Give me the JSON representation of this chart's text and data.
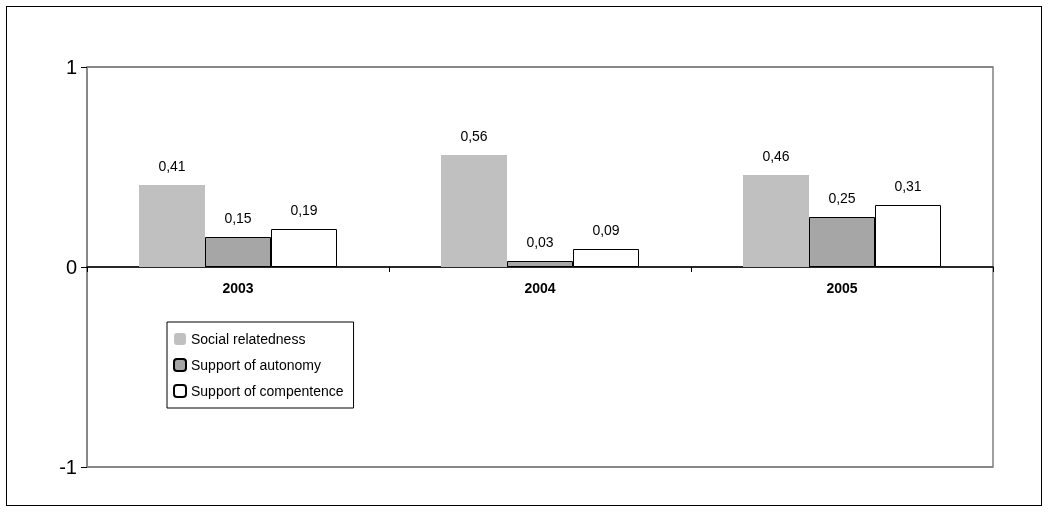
{
  "chart_data": {
    "type": "bar",
    "categories": [
      "2003",
      "2004",
      "2005"
    ],
    "series": [
      {
        "name": "Social relatedness",
        "color": "#c0c0c0",
        "values": [
          0.41,
          0.56,
          0.46
        ],
        "value_labels": [
          "0,41",
          "0,56",
          "0,46"
        ]
      },
      {
        "name": "Support of autonomy",
        "color": "#a6a6a6",
        "values": [
          0.15,
          0.03,
          0.25
        ],
        "value_labels": [
          "0,15",
          "0,03",
          "0,25"
        ]
      },
      {
        "name": "Support of compentence",
        "color": "#ffffff",
        "values": [
          0.19,
          0.09,
          0.31
        ],
        "value_labels": [
          "0,19",
          "0,09",
          "0,31"
        ]
      }
    ],
    "ylim": [
      -1,
      1
    ],
    "yticks": [
      -1,
      0,
      1
    ],
    "grid": "y",
    "legend": "bottom left"
  }
}
